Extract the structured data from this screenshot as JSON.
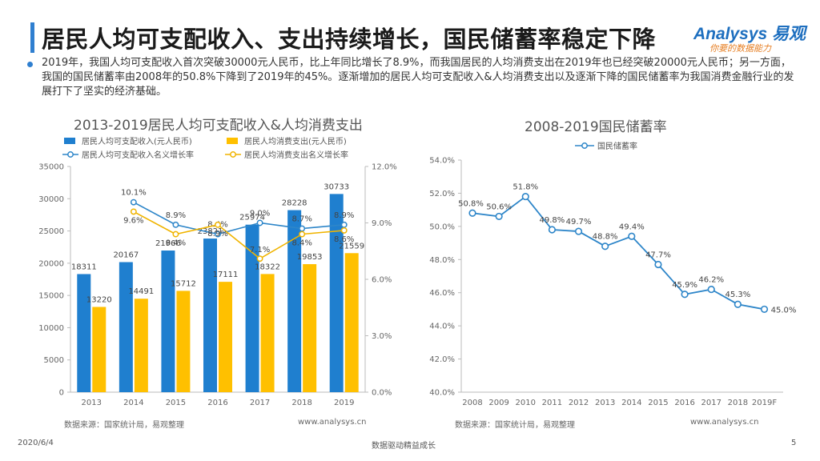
{
  "header": {
    "title": "居民人均可支配收入、支出持续增长，国民储蓄率稳定下降",
    "logo_main": "Analysys 易观",
    "logo_sub": "你要的数据能力"
  },
  "paragraph": "2019年，我国人均可支配收入首次突破30000元人民币，比上年同比增长了8.9%，而我国居民的人均消费支出在2019年也已经突破20000元人民币；另一方面，我国的国民储蓄率由2008年的50.8%下降到了2019年的45%。逐渐增加的居民人均可支配收入&人均消费支出以及逐渐下降的国民储蓄率为我国消费金融行业的发展打下了坚实的经济基础。",
  "footer": {
    "date": "2020/6/4",
    "center": "数据驱动精益成长",
    "page": "5"
  },
  "colors": {
    "blue_bar": "#1f7fcf",
    "yellow_bar": "#ffc000",
    "income_line": "#2e86c9",
    "expense_line": "#f0b400",
    "saving_line": "#2e86c9"
  },
  "chart_data": [
    {
      "type": "bar",
      "title": "2013-2019居民人均可支配收入&人均消费支出",
      "categories": [
        "2013",
        "2014",
        "2015",
        "2016",
        "2017",
        "2018",
        "2019"
      ],
      "series": [
        {
          "name": "居民人均可支配收入(元人民币)",
          "kind": "bar",
          "values": [
            18311,
            20167,
            21966,
            23821,
            25974,
            28228,
            30733
          ],
          "labels": [
            "18311",
            "20167",
            "21966",
            "23821",
            "25974",
            "28228",
            "30733"
          ]
        },
        {
          "name": "居民人均消费支出(元人民币)",
          "kind": "bar",
          "values": [
            13220,
            14491,
            15712,
            17111,
            18322,
            19853,
            21559
          ],
          "labels": [
            "13220",
            "14491",
            "15712",
            "17111",
            "18322",
            "19853",
            "21559"
          ]
        },
        {
          "name": "居民人均可支配收入名义增长率",
          "kind": "line",
          "values": [
            null,
            10.1,
            8.9,
            8.4,
            9.0,
            8.7,
            8.9
          ],
          "labels": [
            "",
            "10.1%",
            "8.9%",
            "8.4%",
            "9.0%",
            "8.7%",
            "8.9%"
          ]
        },
        {
          "name": "居民人均消费支出名义增长率",
          "kind": "line",
          "values": [
            null,
            9.6,
            8.4,
            8.9,
            7.1,
            8.4,
            8.6
          ],
          "labels": [
            "",
            "9.6%",
            "8.4%",
            "8.9%",
            "7.1%",
            "8.4%",
            "8.6%"
          ]
        }
      ],
      "y_left": {
        "min": 0,
        "max": 35000,
        "ticks": [
          "0",
          "5000",
          "10000",
          "15000",
          "20000",
          "25000",
          "30000",
          "35000"
        ]
      },
      "y_right": {
        "min": 0,
        "max": 12,
        "ticks": [
          "0.0%",
          "3.0%",
          "6.0%",
          "9.0%",
          "12.0%"
        ]
      },
      "source": "数据来源：国家统计局，易观整理",
      "site": "www.analysys.cn"
    },
    {
      "type": "line",
      "title": "2008-2019国民储蓄率",
      "legend": "国民储蓄率",
      "categories": [
        "2008",
        "2009",
        "2010",
        "2011",
        "2012",
        "2013",
        "2014",
        "2015",
        "2016",
        "2017",
        "2018",
        "2019F"
      ],
      "values": [
        50.8,
        50.6,
        51.8,
        49.8,
        49.7,
        48.8,
        49.4,
        47.7,
        45.9,
        46.2,
        45.3,
        45.0
      ],
      "labels": [
        "50.8%",
        "50.6%",
        "51.8%",
        "49.8%",
        "49.7%",
        "48.8%",
        "49.4%",
        "47.7%",
        "45.9%",
        "46.2%",
        "45.3%",
        "45.0%"
      ],
      "y": {
        "min": 40,
        "max": 54,
        "ticks": [
          "40.0%",
          "42.0%",
          "44.0%",
          "46.0%",
          "48.0%",
          "50.0%",
          "52.0%",
          "54.0%"
        ]
      },
      "source": "数据来源：国家统计局，易观整理",
      "site": "www.analysys.cn"
    }
  ]
}
